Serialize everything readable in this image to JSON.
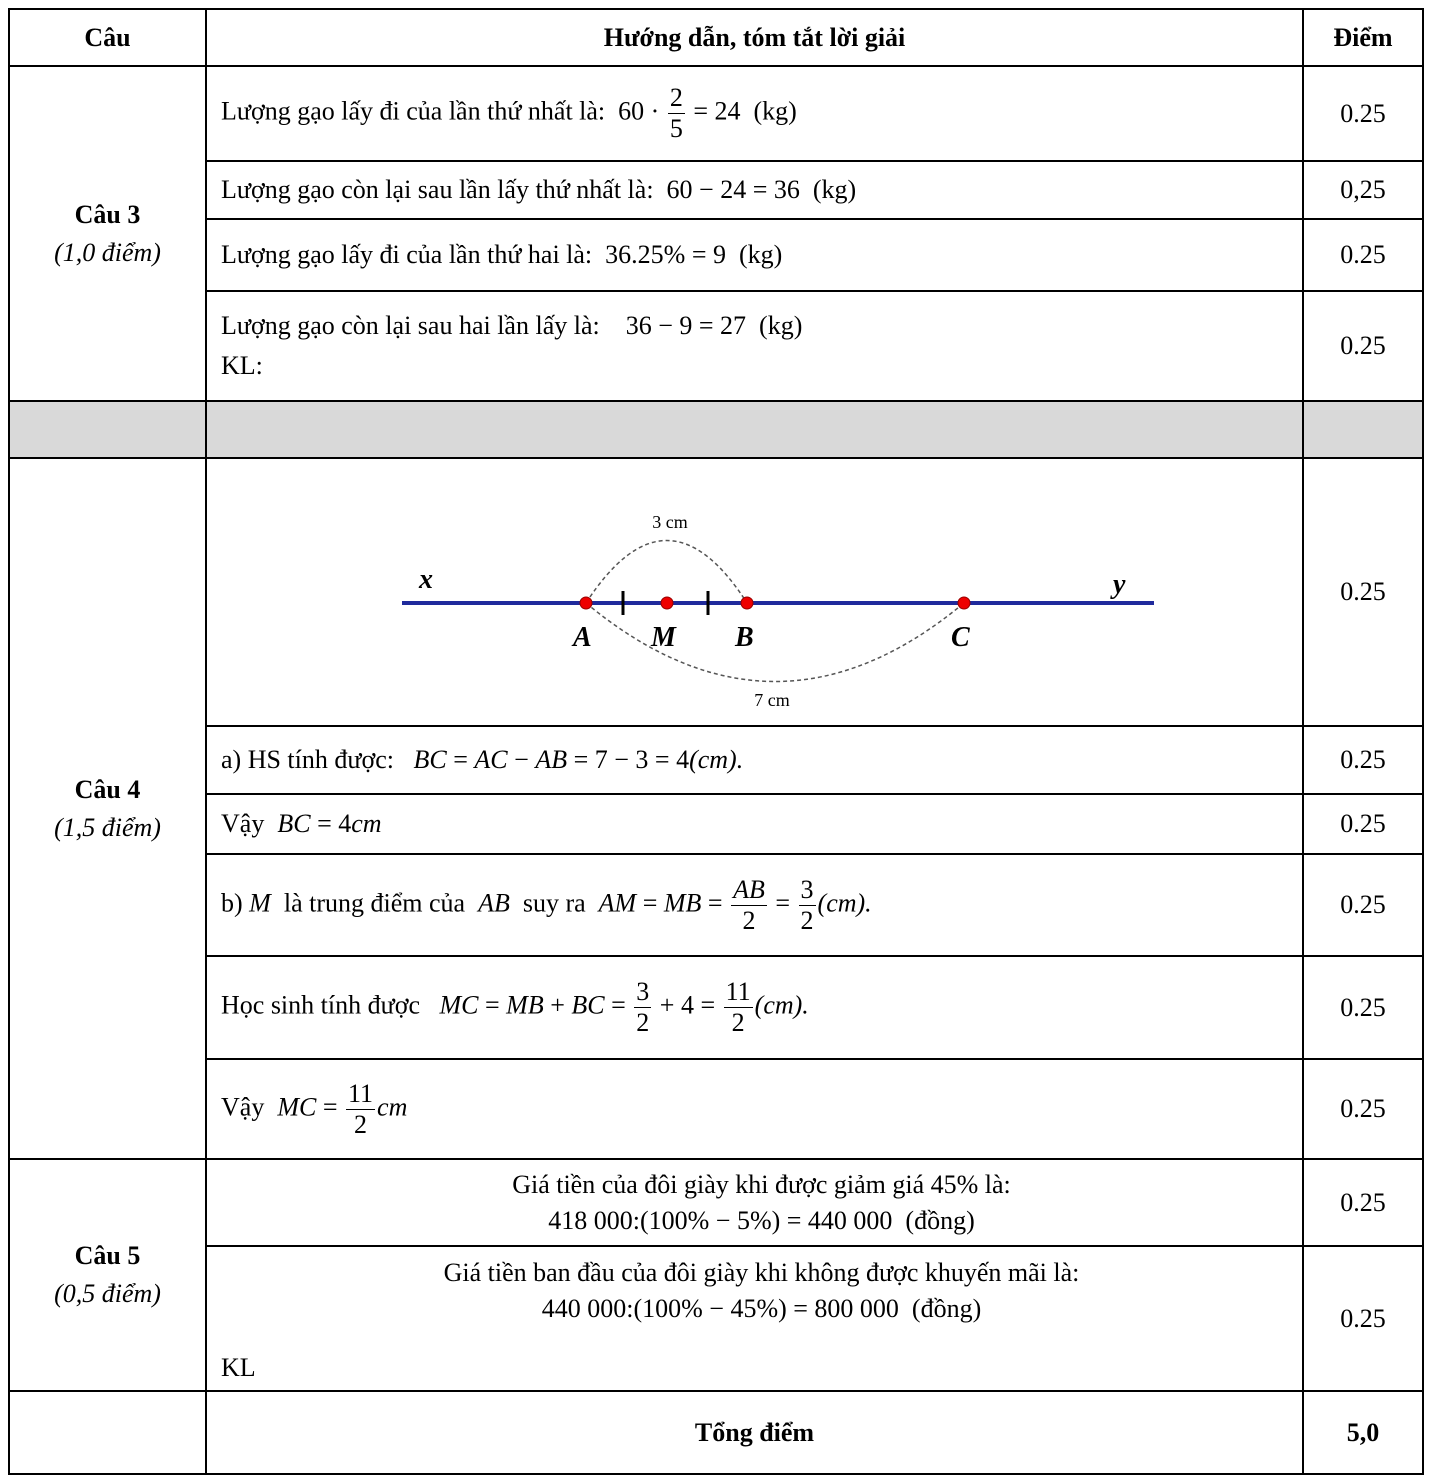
{
  "header": {
    "col1": "Câu",
    "col2": "Hướng dẫn, tóm tắt lời giải",
    "col3": "Điểm"
  },
  "sections": [
    {
      "label": "Câu 3",
      "points": "(1,0 điểm)",
      "rows": [
        {
          "lines": [
            [
              {
                "t": "Lượng gạo lấy đi của lần thứ nhất là: "
              },
              {
                "m": " 60 · "
              },
              {
                "f": [
                  "2",
                  "5"
                ]
              },
              {
                "m": " = 24  (kg)"
              }
            ]
          ],
          "score": "0.25"
        },
        {
          "lines": [
            [
              {
                "t": "Lượng gạo còn lại sau lần lấy thứ nhất là: "
              },
              {
                "m": " 60 − 24 = 36  (kg)"
              }
            ]
          ],
          "score": "0,25"
        },
        {
          "lines": [
            [
              {
                "t": "Lượng gạo lấy đi của lần thứ hai là: "
              },
              {
                "m": " 36.25% = 9  (kg)"
              }
            ]
          ],
          "score": "0.25"
        },
        {
          "lines": [
            [
              {
                "t": "Lượng gạo còn lại sau hai lần lấy là:   "
              },
              {
                "m": " 36 − 9 = 27  (kg)"
              }
            ],
            [
              {
                "t": "KL:"
              }
            ]
          ],
          "score": "0.25"
        }
      ]
    },
    {
      "label": "Câu 4",
      "points": "(1,5 điểm)",
      "rows": [
        {
          "figure": {
            "x": "x",
            "y": "y",
            "A": "A",
            "M": "M",
            "B": "B",
            "C": "C",
            "top": "3 cm",
            "bottom": "7 cm"
          },
          "score": "0.25"
        },
        {
          "lines": [
            [
              {
                "t": "a) HS tính được:   "
              },
              {
                "i": "BC"
              },
              {
                "m": " = "
              },
              {
                "i": "AC"
              },
              {
                "m": " − "
              },
              {
                "i": "AB"
              },
              {
                "m": " = 7 − 3 = 4"
              },
              {
                "i": "(cm)."
              }
            ]
          ],
          "score": "0.25"
        },
        {
          "lines": [
            [
              {
                "t": "Vậy  "
              },
              {
                "i": "BC"
              },
              {
                "m": " = 4"
              },
              {
                "i": "cm"
              }
            ]
          ],
          "score": "0.25"
        },
        {
          "lines": [
            [
              {
                "t": "b) "
              },
              {
                "i": "M"
              },
              {
                "t": "  là trung điểm của  "
              },
              {
                "i": "AB"
              },
              {
                "t": "  suy ra  "
              },
              {
                "i": "AM"
              },
              {
                "m": " = "
              },
              {
                "i": "MB"
              },
              {
                "m": " = "
              },
              {
                "f": [
                  "AB",
                  "2"
                ]
              },
              {
                "m": " = "
              },
              {
                "f": [
                  "3",
                  "2"
                ]
              },
              {
                "i": "(cm)."
              }
            ]
          ],
          "score": "0.25"
        },
        {
          "lines": [
            [
              {
                "t": "Học sinh tính được   "
              },
              {
                "i": "MC"
              },
              {
                "m": " = "
              },
              {
                "i": "MB"
              },
              {
                "m": " + "
              },
              {
                "i": "BC"
              },
              {
                "m": " = "
              },
              {
                "f": [
                  "3",
                  "2"
                ]
              },
              {
                "m": " + 4 = "
              },
              {
                "f": [
                  "11",
                  "2"
                ]
              },
              {
                "i": "(cm)."
              }
            ]
          ],
          "score": "0.25"
        },
        {
          "lines": [
            [
              {
                "t": "Vậy  "
              },
              {
                "i": "MC"
              },
              {
                "m": " = "
              },
              {
                "f": [
                  "11",
                  "2"
                ]
              },
              {
                "i": "cm"
              }
            ]
          ],
          "score": "0.25"
        }
      ]
    },
    {
      "label": "Câu 5",
      "points": "(0,5 điểm)",
      "rows": [
        {
          "lines": [
            [
              {
                "t": "Giá tiền của đôi giày khi được giảm giá 45% là:"
              }
            ],
            [
              {
                "m": "418 000:(100% − 5%) = 440 000  (đồng)"
              }
            ]
          ],
          "score": "0.25"
        },
        {
          "lines": [
            [
              {
                "t": "Giá tiền ban đầu của đôi giày khi không được khuyến mãi là:"
              }
            ],
            [
              {
                "m": "440 000:(100% − 45%) = 800 000  (đồng)"
              }
            ]
          ],
          "note": "KL",
          "score": "0.25"
        }
      ]
    }
  ],
  "total": {
    "label": "Tổng điểm",
    "score": "5,0"
  }
}
